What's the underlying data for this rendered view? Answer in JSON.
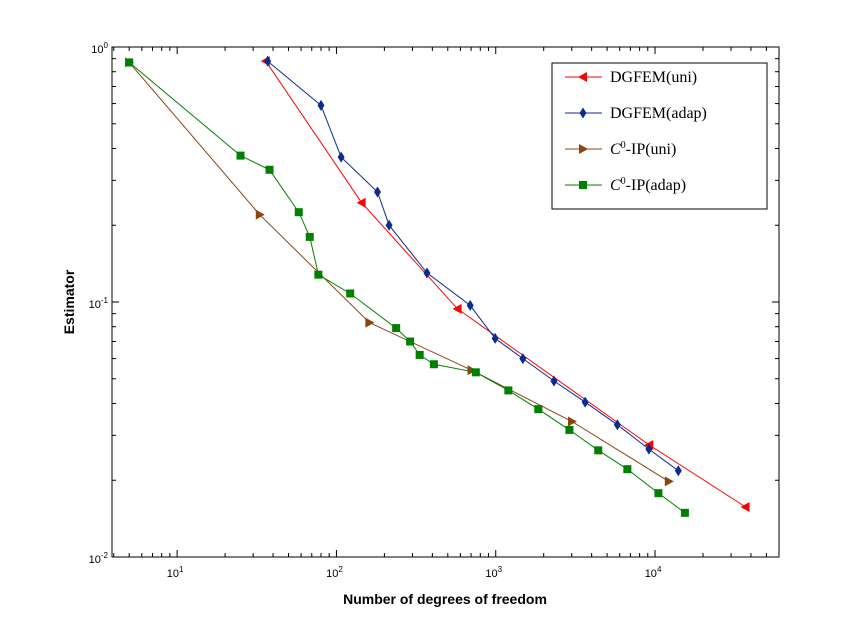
{
  "chart_data": {
    "type": "line",
    "xscale": "log",
    "yscale": "log",
    "xlim": [
      3.9,
      60000
    ],
    "ylim": [
      0.01,
      1
    ],
    "xlabel": "Number of degrees of freedom",
    "ylabel": "Estimator",
    "x_ticks": [
      {
        "value": 10,
        "base": "10",
        "exp": "1"
      },
      {
        "value": 100,
        "base": "10",
        "exp": "2"
      },
      {
        "value": 1000,
        "base": "10",
        "exp": "3"
      },
      {
        "value": 10000,
        "base": "10",
        "exp": "4"
      }
    ],
    "y_ticks": [
      {
        "value": 0.01,
        "base": "10",
        "exp": "-2"
      },
      {
        "value": 0.1,
        "base": "10",
        "exp": "-1"
      },
      {
        "value": 1,
        "base": "10",
        "exp": "0"
      }
    ],
    "legend_position": "top-right",
    "series": [
      {
        "name": "DGFEM(uni)",
        "legend_parts": [
          {
            "text": "DGFEM(uni)",
            "sup": false
          }
        ],
        "color": "#ff0000",
        "marker": "triangle-left",
        "x": [
          36,
          144,
          576,
          9200,
          37000
        ],
        "y": [
          0.88,
          0.245,
          0.094,
          0.0275,
          0.0157
        ]
      },
      {
        "name": "DGFEM(adap)",
        "legend_parts": [
          {
            "text": "DGFEM(adap)",
            "sup": false
          }
        ],
        "color": "#0c2b8f",
        "marker": "diamond",
        "x": [
          37,
          80,
          107,
          181,
          214,
          370,
          691,
          991,
          1480,
          2320,
          3640,
          5800,
          9150,
          14000
        ],
        "y": [
          0.88,
          0.59,
          0.37,
          0.27,
          0.2,
          0.13,
          0.097,
          0.072,
          0.06,
          0.049,
          0.0405,
          0.033,
          0.0265,
          0.0218
        ]
      },
      {
        "name": "C0-IP(uni)",
        "legend_parts": [
          {
            "text": "C",
            "sup": false
          },
          {
            "text": "0",
            "sup": true
          },
          {
            "text": "-IP(uni)",
            "sup": false
          }
        ],
        "color": "#8b4513",
        "marker": "triangle-right",
        "x": [
          5,
          33,
          161,
          705,
          3010,
          12200
        ],
        "y": [
          0.87,
          0.22,
          0.083,
          0.054,
          0.034,
          0.0198
        ]
      },
      {
        "name": "C0-IP(adap)",
        "legend_parts": [
          {
            "text": "C",
            "sup": false
          },
          {
            "text": "0",
            "sup": true
          },
          {
            "text": "-IP(adap)",
            "sup": false
          }
        ],
        "color": "#008000",
        "marker": "square",
        "x": [
          5,
          25,
          38,
          58,
          68,
          77,
          122,
          237,
          290,
          333,
          409,
          750,
          1200,
          1850,
          2900,
          4400,
          6700,
          10500,
          15400
        ],
        "y": [
          0.87,
          0.375,
          0.33,
          0.225,
          0.18,
          0.128,
          0.108,
          0.079,
          0.07,
          0.062,
          0.057,
          0.053,
          0.045,
          0.038,
          0.0315,
          0.0262,
          0.0221,
          0.0178,
          0.0149
        ]
      }
    ]
  }
}
